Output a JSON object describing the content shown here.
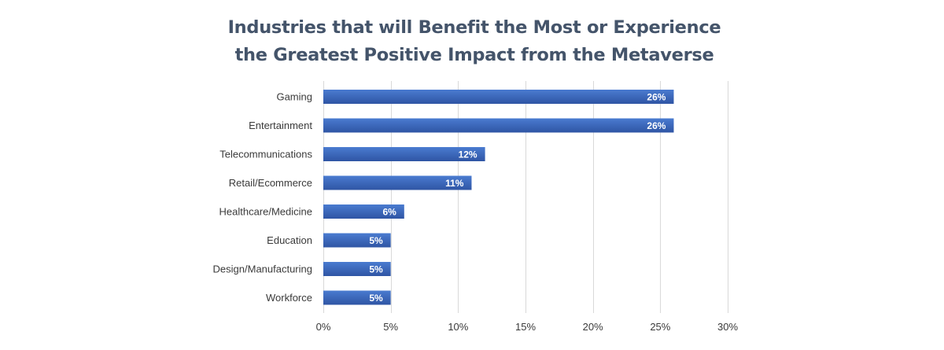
{
  "chart_data": {
    "type": "bar",
    "orientation": "horizontal",
    "title": [
      "Industries that will Benefit the Most or Experience",
      "the Greatest Positive Impact from the Metaverse"
    ],
    "xlabel": "",
    "ylabel": "",
    "categories": [
      "Gaming",
      "Entertainment",
      "Telecommunications",
      "Retail/Ecommerce",
      "Healthcare/Medicine",
      "Education",
      "Design/Manufacturing",
      "Workforce"
    ],
    "values": [
      26,
      26,
      12,
      11,
      6,
      5,
      5,
      5
    ],
    "data_labels": [
      "26%",
      "26%",
      "12%",
      "11%",
      "6%",
      "5%",
      "5%",
      "5%"
    ],
    "xlim": [
      0,
      30
    ],
    "x_ticks": [
      0,
      5,
      10,
      15,
      20,
      25,
      30
    ],
    "x_tick_labels": [
      "0%",
      "5%",
      "10%",
      "15%",
      "20%",
      "25%",
      "30%"
    ],
    "grid": "vertical",
    "legend": "none",
    "bar_color": "#4472c4",
    "bar_color_dark": "#2f55a4"
  }
}
